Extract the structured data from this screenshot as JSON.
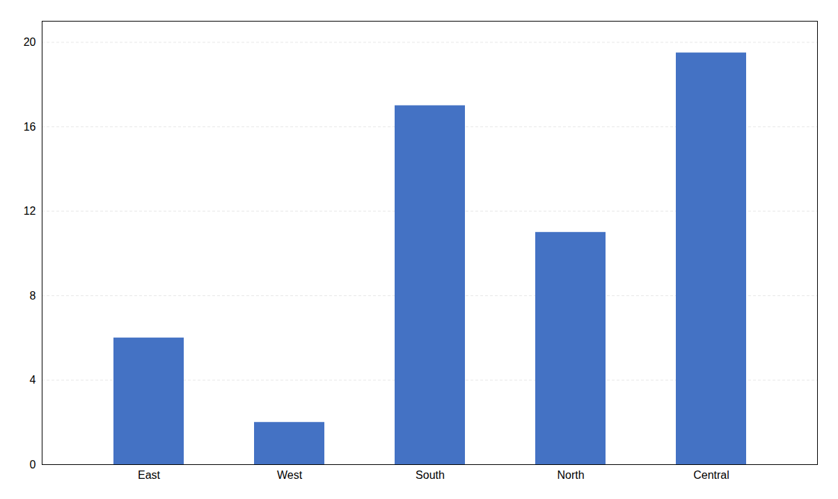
{
  "chart_data": {
    "type": "bar",
    "categories": [
      "East",
      "West",
      "South",
      "North",
      "Central"
    ],
    "values": [
      6,
      2,
      17,
      11,
      19.5
    ],
    "color": "#4472C4",
    "ylim": [
      0,
      21
    ],
    "yticks": [
      0,
      4,
      8,
      12,
      16,
      20
    ],
    "grid": true
  }
}
